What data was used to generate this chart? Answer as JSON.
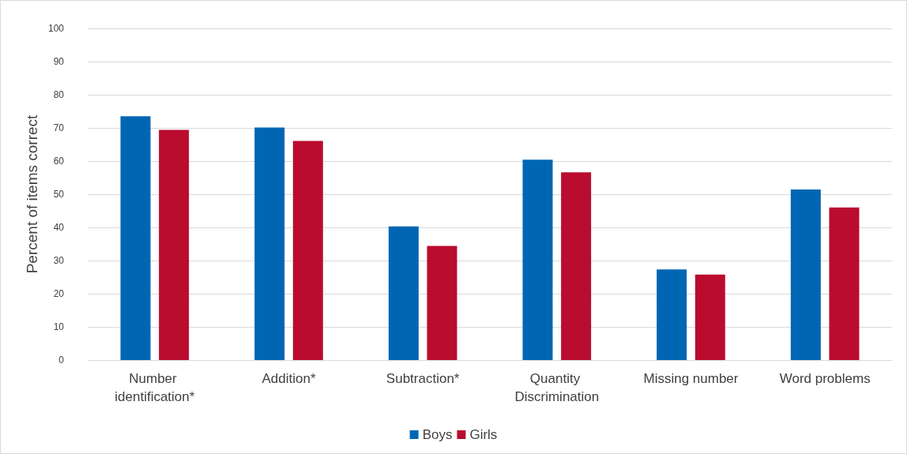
{
  "chart_data": {
    "type": "bar",
    "ylabel": "Percent of items correct",
    "categories": [
      "Number identification*",
      "Addition*",
      "Subtraction*",
      "Quantity Discrimination",
      "Missing number",
      "Word problems"
    ],
    "series": [
      {
        "name": "Boys",
        "color": "#0066b3",
        "values": [
          73.5,
          70.1,
          40.3,
          60.4,
          27.3,
          51.4
        ]
      },
      {
        "name": "Girls",
        "color": "#b90c2f",
        "values": [
          69.4,
          66.1,
          34.4,
          56.6,
          25.8,
          46.0
        ]
      }
    ],
    "ylim": [
      0,
      100
    ],
    "yticks": [
      0,
      10,
      20,
      30,
      40,
      50,
      60,
      70,
      80,
      90,
      100
    ],
    "grid": "y",
    "legend": "bottom"
  }
}
